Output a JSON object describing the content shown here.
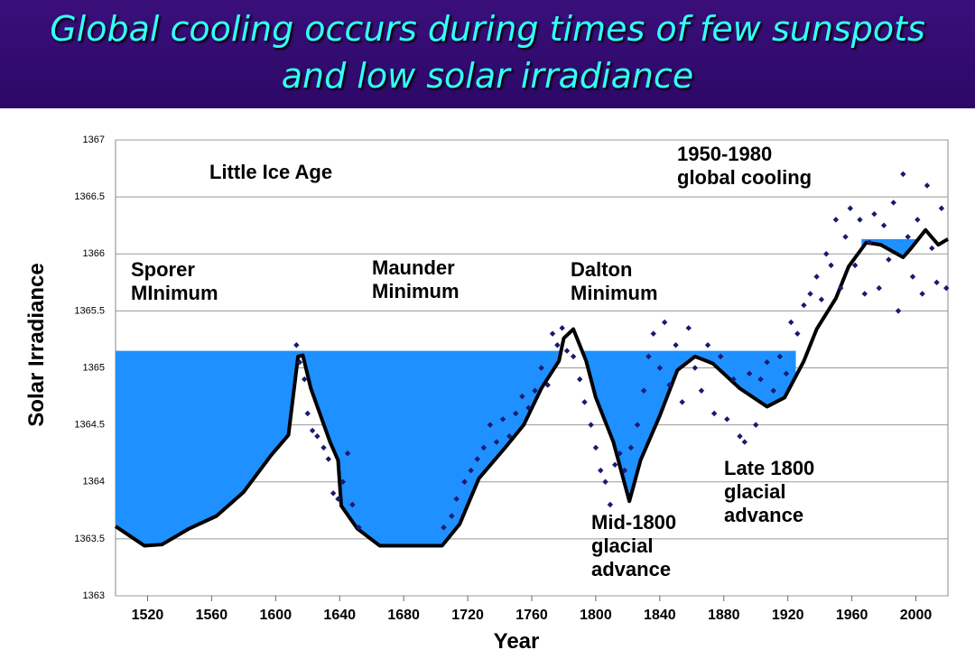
{
  "chart_data": {
    "type": "line",
    "title": "Global cooling occurs during times of few sunspots and low solar irradiance",
    "x_label": "Year",
    "y_label": "Solar Irradiance",
    "xlim": [
      1500,
      2020
    ],
    "ylim": [
      1363,
      1367
    ],
    "xticks": [
      1520,
      1560,
      1600,
      1640,
      1680,
      1720,
      1760,
      1800,
      1840,
      1880,
      1920,
      1960,
      2000
    ],
    "yticks": [
      1363,
      1363.5,
      1364,
      1364.5,
      1365,
      1365.5,
      1366,
      1366.5,
      1367
    ],
    "grid": true,
    "line": {
      "color": "#000000",
      "x": [
        1500,
        1518,
        1529,
        1546,
        1563,
        1580,
        1597,
        1608,
        1614,
        1617,
        1622,
        1634,
        1639,
        1641,
        1651,
        1665,
        1704,
        1715,
        1727,
        1744,
        1755,
        1766,
        1777,
        1780,
        1786,
        1794,
        1800,
        1811,
        1821,
        1828,
        1840,
        1851,
        1862,
        1873,
        1890,
        1907,
        1918,
        1930,
        1938,
        1950,
        1958,
        1969,
        1978,
        1992,
        1997,
        2006,
        2014,
        2020
      ],
      "values": [
        1363.61,
        1363.44,
        1363.45,
        1363.59,
        1363.7,
        1363.91,
        1364.23,
        1364.41,
        1365.1,
        1365.11,
        1364.82,
        1364.35,
        1364.19,
        1363.79,
        1363.59,
        1363.44,
        1363.44,
        1363.63,
        1364.03,
        1364.31,
        1364.5,
        1364.82,
        1365.06,
        1365.26,
        1365.34,
        1365.06,
        1364.74,
        1364.35,
        1363.83,
        1364.19,
        1364.58,
        1364.98,
        1365.1,
        1365.04,
        1364.82,
        1364.66,
        1364.74,
        1365.06,
        1365.34,
        1365.61,
        1365.89,
        1366.1,
        1366.08,
        1365.97,
        1366.05,
        1366.21,
        1366.08,
        1366.13
      ]
    },
    "scatter": {
      "color": "#1a1a6e",
      "x": [
        1613,
        1615,
        1618,
        1620,
        1623,
        1626,
        1630,
        1633,
        1636,
        1639,
        1642,
        1645,
        1648,
        1652,
        1705,
        1710,
        1713,
        1718,
        1722,
        1726,
        1730,
        1734,
        1738,
        1742,
        1746,
        1750,
        1754,
        1758,
        1762,
        1766,
        1770,
        1773,
        1776,
        1779,
        1782,
        1786,
        1790,
        1793,
        1797,
        1800,
        1803,
        1806,
        1809,
        1812,
        1815,
        1818,
        1822,
        1826,
        1830,
        1833,
        1836,
        1840,
        1843,
        1846,
        1850,
        1854,
        1858,
        1862,
        1866,
        1870,
        1874,
        1878,
        1882,
        1886,
        1890,
        1893,
        1896,
        1900,
        1903,
        1907,
        1911,
        1915,
        1919,
        1922,
        1926,
        1930,
        1934,
        1938,
        1941,
        1944,
        1947,
        1950,
        1953,
        1956,
        1959,
        1962,
        1965,
        1968,
        1971,
        1974,
        1977,
        1980,
        1983,
        1986,
        1989,
        1992,
        1995,
        1998,
        2001,
        2004,
        2007,
        2010,
        2013,
        2016,
        2019
      ],
      "values": [
        1365.2,
        1365.05,
        1364.9,
        1364.6,
        1364.45,
        1364.4,
        1364.3,
        1364.2,
        1363.9,
        1363.85,
        1364,
        1364.25,
        1363.8,
        1363.6,
        1363.6,
        1363.7,
        1363.85,
        1364,
        1364.1,
        1364.2,
        1364.3,
        1364.5,
        1364.35,
        1364.55,
        1364.4,
        1364.6,
        1364.75,
        1364.65,
        1364.8,
        1365,
        1364.85,
        1365.3,
        1365.2,
        1365.35,
        1365.15,
        1365.1,
        1364.9,
        1364.7,
        1364.5,
        1364.3,
        1364.1,
        1364,
        1363.8,
        1364.15,
        1364.25,
        1364.1,
        1364.3,
        1364.5,
        1364.8,
        1365.1,
        1365.3,
        1365,
        1365.4,
        1364.85,
        1365.2,
        1364.7,
        1365.35,
        1365,
        1364.8,
        1365.2,
        1364.6,
        1365.1,
        1364.55,
        1364.9,
        1364.4,
        1364.35,
        1364.95,
        1364.5,
        1364.9,
        1365.05,
        1364.8,
        1365.1,
        1364.95,
        1365.4,
        1365.3,
        1365.55,
        1365.65,
        1365.8,
        1365.6,
        1366,
        1365.9,
        1366.3,
        1365.7,
        1366.15,
        1366.4,
        1365.9,
        1366.3,
        1365.65,
        1366.1,
        1366.35,
        1365.7,
        1366.25,
        1365.95,
        1366.45,
        1365.5,
        1366.7,
        1366.15,
        1365.8,
        1366.3,
        1365.65,
        1366.6,
        1366.05,
        1365.75,
        1366.4,
        1365.7
      ]
    },
    "shading": [
      {
        "level": 1365.15,
        "from": 1500,
        "to": 1925,
        "color": "#1e90ff"
      },
      {
        "level": 1366.13,
        "from": 1966,
        "to": 2003,
        "color": "#1e90ff"
      }
    ],
    "annotations": [
      {
        "lines": [
          "Little Ice Age"
        ]
      },
      {
        "lines": [
          "1950-1980",
          "global cooling"
        ]
      },
      {
        "lines": [
          "Sporer",
          "MInimum"
        ]
      },
      {
        "lines": [
          "Maunder",
          "Minimum"
        ]
      },
      {
        "lines": [
          "Dalton",
          "Minimum"
        ]
      },
      {
        "lines": [
          "Mid-1800",
          "glacial",
          "advance"
        ]
      },
      {
        "lines": [
          "Late 1800",
          "glacial",
          "advance"
        ]
      }
    ]
  }
}
